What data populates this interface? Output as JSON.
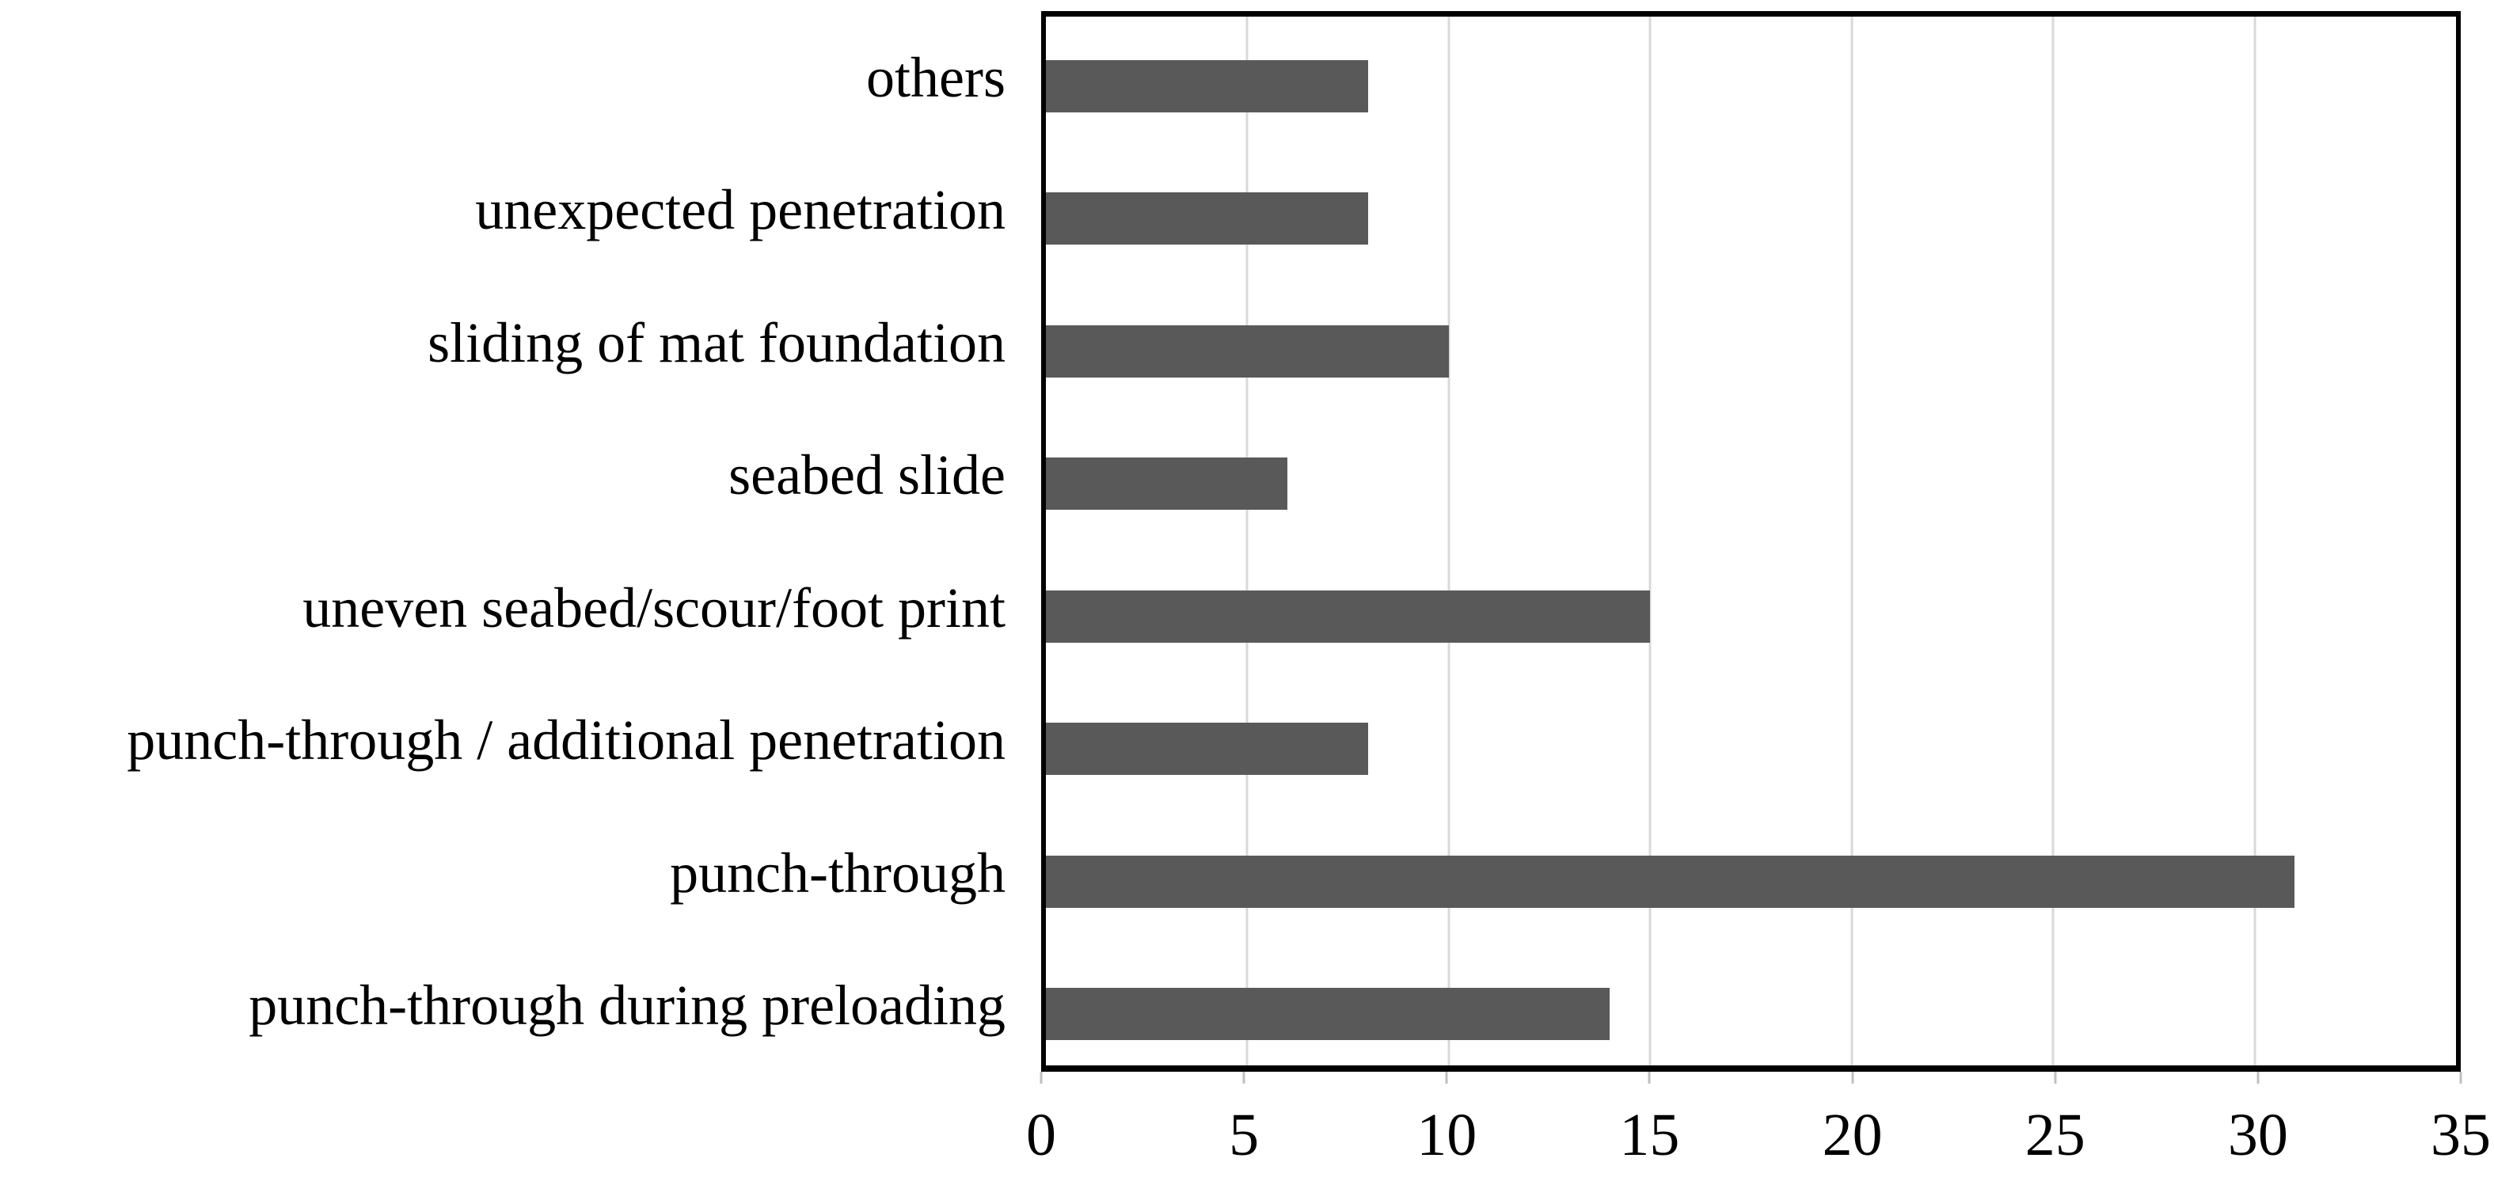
{
  "chart_data": {
    "type": "bar",
    "orientation": "horizontal",
    "title": "",
    "xlabel": "",
    "ylabel": "",
    "categories": [
      "others",
      "unexpected penetration",
      "sliding of mat foundation",
      "seabed slide",
      "uneven seabed/scour/foot print",
      "punch-through / additional penetration",
      "punch-through",
      "punch-through during preloading"
    ],
    "values": [
      8,
      8,
      10,
      6,
      15,
      8,
      31,
      14
    ],
    "xlim": [
      0,
      35
    ],
    "x_ticks": [
      "0",
      "5",
      "10",
      "15",
      "20",
      "25",
      "30",
      "35"
    ],
    "grid": "vertical-gridlines-on",
    "legend": "none",
    "colors": {
      "bar": "#595959",
      "gridline": "#d9d9d9",
      "tick_mark": "#bfbfbf",
      "border": "#000000",
      "background": "#ffffff",
      "text": "#000000"
    }
  }
}
